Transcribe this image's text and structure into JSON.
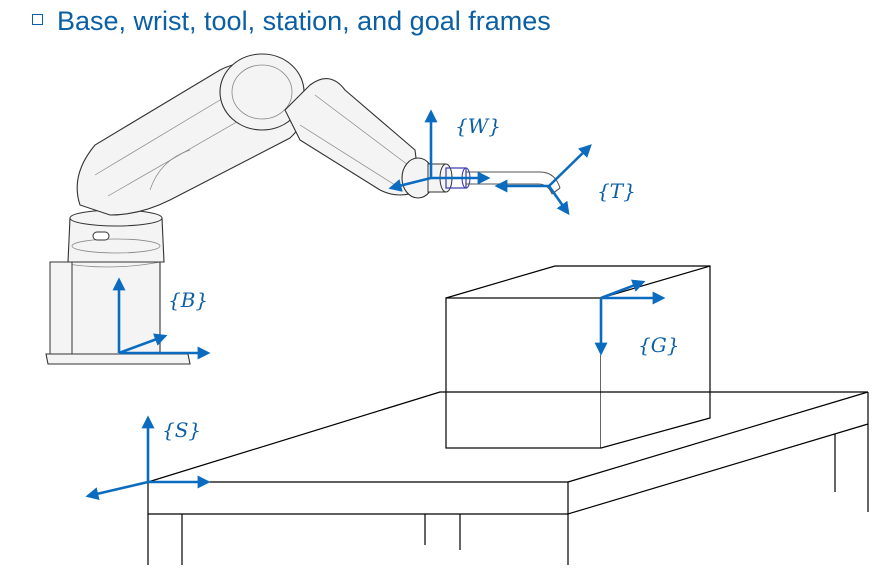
{
  "title": "Base, wrist, tool, station, and goal frames",
  "frames": {
    "base": "{B}",
    "wrist": "{W}",
    "tool": "{T}",
    "station": "{S}",
    "goal": "{G}"
  },
  "colors": {
    "title": "#0b5fa5",
    "axis": "#0b6cbf",
    "outline": "#000000"
  },
  "icons": {
    "bullet": "square-bullet-icon"
  }
}
